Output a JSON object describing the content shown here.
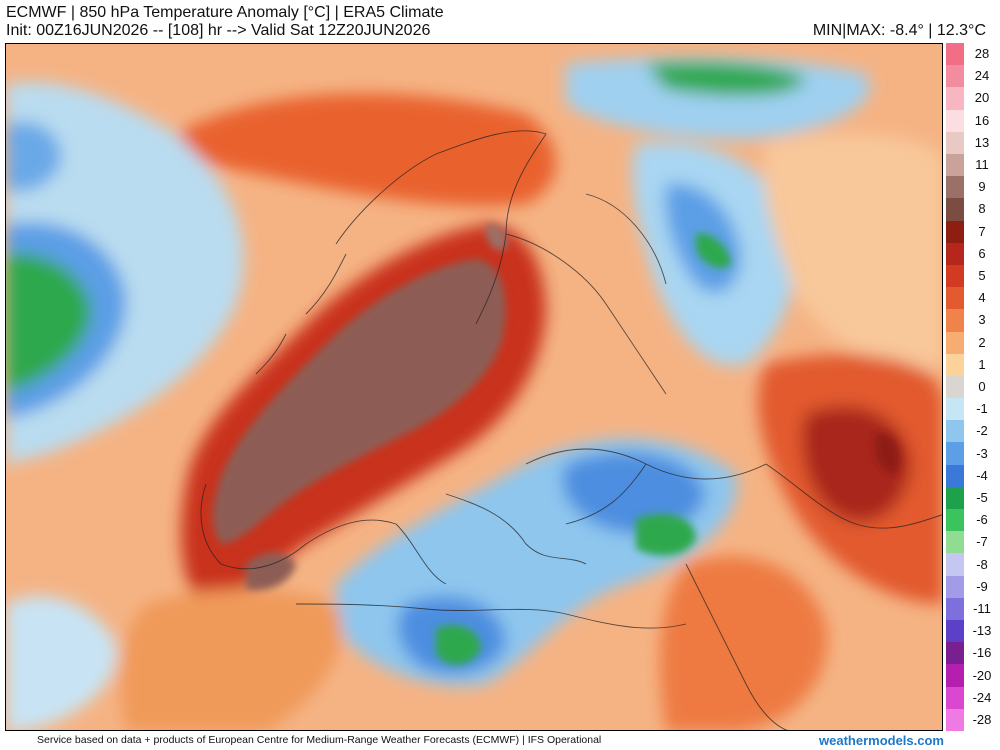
{
  "header": {
    "title": "ECMWF | 850 hPa Temperature Anomaly [°C] | ERA5 Climate",
    "subtitle": "Init: 00Z16JUN2026 -- [108] hr --> Valid Sat 12Z20JUN2026",
    "minmax": "MIN|MAX: -8.4° | 12.3°C"
  },
  "colorbar": {
    "labels": [
      "28",
      "24",
      "20",
      "16",
      "13",
      "11",
      "9",
      "8",
      "7",
      "6",
      "5",
      "4",
      "3",
      "2",
      "1",
      "0",
      "-1",
      "-2",
      "-3",
      "-4",
      "-5",
      "-6",
      "-7",
      "-8",
      "-9",
      "-11",
      "-13",
      "-16",
      "-20",
      "-24",
      "-28"
    ],
    "colors": [
      "#f26e86",
      "#f28da0",
      "#f7b6c1",
      "#fbdde2",
      "#e8c9c4",
      "#c9a29c",
      "#9b7068",
      "#7a4c42",
      "#8e1d12",
      "#b5261b",
      "#d33a22",
      "#e25a2d",
      "#f0834a",
      "#f7ac72",
      "#fbd39a",
      "#d9d6d2",
      "#c6e6f5",
      "#8ec6ee",
      "#5c9fe6",
      "#3a79d8",
      "#1ea14b",
      "#3cc45c",
      "#8fdc92",
      "#c4c7f2",
      "#a19be8",
      "#7d6fdc",
      "#5c40c8",
      "#7a1f8f",
      "#b41fb0",
      "#d948cf",
      "#f07ae4"
    ]
  },
  "map": {
    "variable": "850 hPa Temperature Anomaly",
    "units": "°C"
  },
  "footer": {
    "credit": "Service based on data + products of European Centre for Medium-Range Weather Forecasts (ECMWF) | IFS Operational",
    "brand": "weathermodels.com"
  }
}
